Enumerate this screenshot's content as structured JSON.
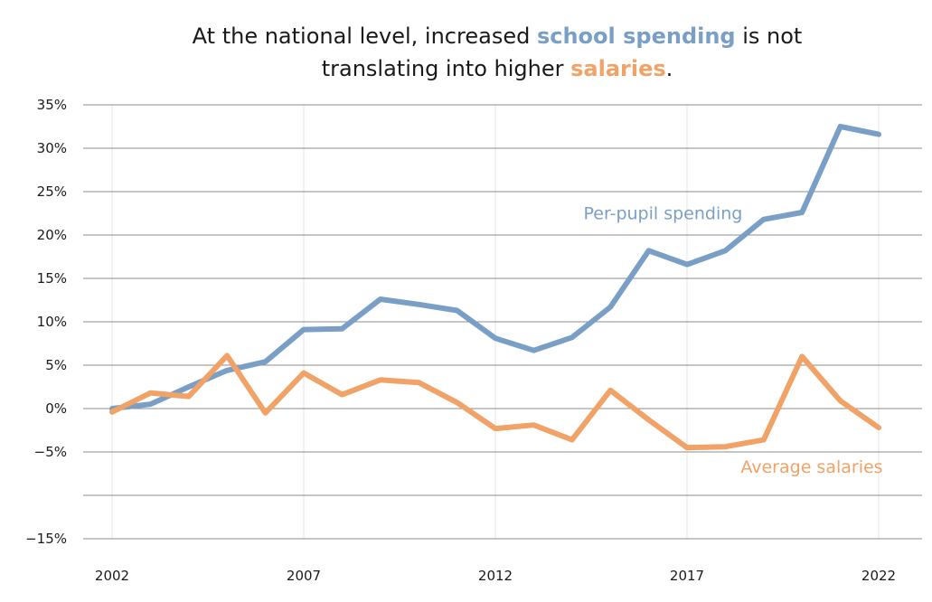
{
  "chart_data": {
    "type": "line",
    "title": {
      "line1_prefix": "At the national level, increased ",
      "line1_highlight": "school spending",
      "line1_suffix": " is not",
      "line2_prefix": "translating into higher ",
      "line2_highlight": "salaries",
      "line2_suffix": "."
    },
    "xlabel": "",
    "ylabel": "",
    "xlim": [
      2002,
      2022
    ],
    "ylim": [
      -15,
      35
    ],
    "x_ticks": [
      2002,
      2007,
      2012,
      2017,
      2022
    ],
    "x_tick_labels": [
      "2002",
      "2007",
      "2012",
      "2017",
      "2022"
    ],
    "y_ticks": [
      -15,
      -10,
      -5,
      0,
      5,
      10,
      15,
      20,
      25,
      30,
      35
    ],
    "y_tick_labels": [
      "−15%",
      "",
      "−5%",
      "0%",
      "5%",
      "10%",
      "15%",
      "20%",
      "25%",
      "30%",
      "35%"
    ],
    "grid": "horizontal lines at every y tick; light vertical lines at x ticks",
    "series": [
      {
        "name": "Per-pupil spending",
        "color": "#7a9fc7",
        "x": [
          2002,
          2003,
          2004,
          2005,
          2006,
          2007,
          2008,
          2009,
          2010,
          2011,
          2012,
          2013,
          2014,
          2015,
          2016,
          2017,
          2018,
          2019,
          2020,
          2021,
          2022
        ],
        "values": [
          0.0,
          0.5,
          2.5,
          4.4,
          5.4,
          9.1,
          9.2,
          12.6,
          12.0,
          11.3,
          8.1,
          6.7,
          8.2,
          11.7,
          18.2,
          16.6,
          18.2,
          21.8,
          22.6,
          32.5,
          31.6
        ]
      },
      {
        "name": "Average salaries",
        "color": "#f0a267",
        "x": [
          2002,
          2003,
          2004,
          2005,
          2006,
          2007,
          2008,
          2009,
          2010,
          2011,
          2012,
          2013,
          2014,
          2015,
          2016,
          2017,
          2018,
          2019,
          2020,
          2021,
          2022
        ],
        "values": [
          -0.4,
          1.8,
          1.4,
          6.1,
          -0.5,
          4.1,
          1.6,
          3.3,
          3.0,
          0.7,
          -2.3,
          -1.9,
          -3.6,
          2.1,
          -1.3,
          -4.5,
          -4.4,
          -3.6,
          6.0,
          0.9,
          -2.2
        ]
      }
    ],
    "labels": [
      {
        "series": "Per-pupil spending",
        "text": "Per-pupil spending",
        "x": 2014.3,
        "y": 21.8
      },
      {
        "series": "Average salaries",
        "text": "Average salaries",
        "x": 2018.4,
        "y": -7.4
      }
    ]
  }
}
